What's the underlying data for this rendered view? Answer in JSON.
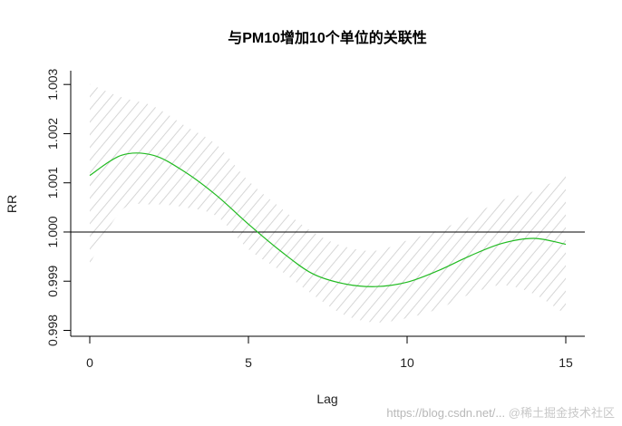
{
  "chart_data": {
    "type": "line",
    "title": "与PM10增加10个单位的关联性",
    "xlabel": "Lag",
    "ylabel": "RR",
    "xlim": [
      -0.6,
      15.6
    ],
    "ylim": [
      0.99788,
      1.00328
    ],
    "xticks": [
      0,
      5,
      10,
      15
    ],
    "yticks": [
      0.998,
      0.999,
      1.0,
      1.001,
      1.002,
      1.003
    ],
    "ytick_labels": [
      "0.998",
      "0.999",
      "1.000",
      "1.001",
      "1.002",
      "1.003"
    ],
    "reference_line": 1.0,
    "grid": false,
    "x": [
      0,
      1,
      2,
      3,
      4,
      5,
      6,
      7,
      8,
      9,
      10,
      11,
      12,
      13,
      14,
      15
    ],
    "series": [
      {
        "values": [
          1.00115,
          1.00156,
          1.00156,
          1.00122,
          1.00074,
          1.00016,
          0.99962,
          0.99916,
          0.99895,
          0.99889,
          0.99898,
          0.99922,
          0.99952,
          0.99977,
          0.99987,
          0.99975
        ],
        "color": "#22bb22"
      }
    ],
    "ci_upper": [
      1.00301,
      1.00274,
      1.00256,
      1.00216,
      1.00177,
      1.00104,
      1.0005,
      1.00001,
      0.99971,
      0.99962,
      0.99983,
      1.00004,
      1.00032,
      1.00065,
      1.00083,
      1.00116
    ],
    "ci_lower": [
      0.99935,
      1.00044,
      1.00056,
      1.0005,
      1.00032,
      0.99965,
      0.99922,
      0.99874,
      0.99832,
      0.99816,
      0.99825,
      0.99844,
      0.99874,
      0.99892,
      0.99874,
      0.99832
    ],
    "ci_style": "hatched light gray"
  },
  "watermark": {
    "url": "https://blog.csdn.net/...",
    "brand": "@稀土掘金技术社区"
  }
}
